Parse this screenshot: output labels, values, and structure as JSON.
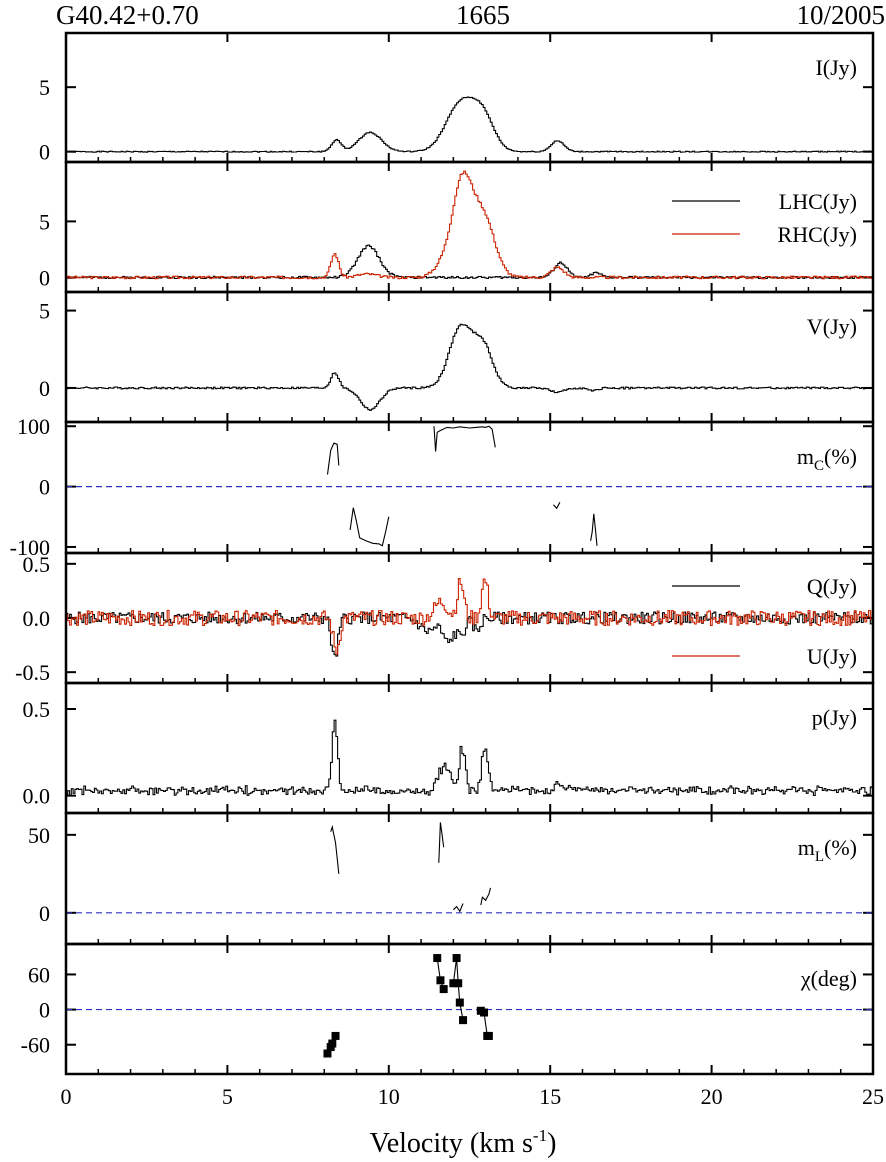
{
  "header": {
    "left": "G40.42+0.70",
    "center": "1665",
    "right": "10/2005"
  },
  "colors": {
    "black": "#000000",
    "red": "#cc2200",
    "zero_dashed": "#3030c0"
  },
  "chart_data": {
    "type": "line",
    "title": "",
    "xlabel": "Velocity (km s",
    "xlabel_exp": "-1",
    "xlabel_close": ")",
    "xlim": [
      0,
      25
    ],
    "xticks": [
      0,
      5,
      10,
      15,
      20,
      25
    ],
    "xtick_labels": [
      "0",
      "5",
      "10",
      "15",
      "20",
      "25"
    ],
    "panels": [
      {
        "id": "I",
        "label": "I(Jy)",
        "ylim": [
          -0.8,
          9.2
        ],
        "yticks": [
          0,
          5
        ],
        "ytick_labels": [
          "0",
          "5"
        ],
        "step": true,
        "series": [
          {
            "color": "black",
            "noise": 0.04,
            "seed": 1,
            "comps": [
              [
                8.35,
                0.9,
                0.15
              ],
              [
                9.4,
                1.5,
                0.35
              ],
              [
                12.2,
                3.7,
                0.45
              ],
              [
                12.9,
                2.4,
                0.35
              ],
              [
                15.2,
                0.85,
                0.2
              ]
            ]
          }
        ]
      },
      {
        "id": "LR",
        "label": "",
        "ylim": [
          -1.3,
          10.3
        ],
        "yticks": [
          0,
          5
        ],
        "ytick_labels": [
          "0",
          "5"
        ],
        "step": true,
        "legend": [
          {
            "name": "LHC(Jy)",
            "color": "black"
          },
          {
            "name": "RHC(Jy)",
            "color": "red"
          }
        ],
        "series": [
          {
            "name": "LHC(Jy)",
            "color": "black",
            "noise": 0.1,
            "seed": 2,
            "comps": [
              [
                9.35,
                2.8,
                0.33
              ],
              [
                15.3,
                1.3,
                0.2
              ],
              [
                16.4,
                0.4,
                0.15
              ]
            ]
          },
          {
            "name": "RHC(Jy)",
            "color": "red",
            "noise": 0.12,
            "seed": 3,
            "comps": [
              [
                8.3,
                2.1,
                0.12
              ],
              [
                9.3,
                0.3,
                0.3
              ],
              [
                12.25,
                8.1,
                0.3
              ],
              [
                12.9,
                5.4,
                0.35
              ],
              [
                11.7,
                1.2,
                0.3
              ],
              [
                15.2,
                0.9,
                0.2
              ]
            ]
          }
        ]
      },
      {
        "id": "V",
        "label": "V(Jy)",
        "ylim": [
          -2.2,
          6.2
        ],
        "yticks": [
          0,
          5
        ],
        "ytick_labels": [
          "0",
          "5"
        ],
        "step": true,
        "series": [
          {
            "color": "black",
            "noise": 0.06,
            "seed": 4,
            "comps": [
              [
                8.3,
                1.0,
                0.12
              ],
              [
                9.4,
                -1.4,
                0.3
              ],
              [
                12.2,
                3.9,
                0.35
              ],
              [
                12.9,
                2.6,
                0.3
              ],
              [
                15.2,
                -0.3,
                0.2
              ],
              [
                16.3,
                -0.2,
                0.15
              ]
            ]
          }
        ]
      },
      {
        "id": "mC",
        "label": "m",
        "label_sub": "C",
        "label_tail": "(%)",
        "ylim": [
          -110,
          107
        ],
        "yticks": [
          100,
          0,
          -100
        ],
        "ytick_labels": [
          "100",
          "0",
          "-100"
        ],
        "zero_line": true,
        "segments": [
          {
            "x": [
              8.1,
              8.2,
              8.3,
              8.4,
              8.45
            ],
            "y": [
              20,
              60,
              72,
              70,
              35
            ]
          },
          {
            "x": [
              8.8,
              8.9,
              9.0,
              9.1,
              9.3,
              9.5,
              9.7,
              9.8,
              9.9,
              10.0
            ],
            "y": [
              -72,
              -35,
              -58,
              -85,
              -90,
              -94,
              -95,
              -98,
              -75,
              -50
            ]
          },
          {
            "x": [
              11.4,
              11.45,
              11.5,
              11.6,
              11.8,
              12.0,
              12.2,
              12.5,
              12.7,
              12.9,
              13.0,
              13.1,
              13.2,
              13.3
            ],
            "y": [
              100,
              58,
              90,
              93,
              98,
              97,
              99,
              97,
              98,
              99,
              98,
              100,
              95,
              65
            ]
          },
          {
            "x": [
              15.1,
              15.2,
              15.3
            ],
            "y": [
              -30,
              -36,
              -26
            ]
          },
          {
            "x": [
              16.25,
              16.3,
              16.35,
              16.4,
              16.45
            ],
            "y": [
              -90,
              -75,
              -45,
              -70,
              -98
            ]
          }
        ]
      },
      {
        "id": "QU",
        "label": "",
        "ylim": [
          -0.6,
          0.6
        ],
        "yticks": [
          0.5,
          0.0,
          -0.5
        ],
        "ytick_labels": [
          "0.5",
          "0.0",
          "-0.5"
        ],
        "step": true,
        "legend": [
          {
            "name": "Q(Jy)",
            "color": "black"
          },
          {
            "name": "U(Jy)",
            "color": "red"
          }
        ],
        "series": [
          {
            "name": "Q(Jy)",
            "color": "black",
            "noise": 0.055,
            "seed": 5,
            "comps": [
              [
                8.3,
                -0.38,
                0.1
              ],
              [
                11.2,
                -0.12,
                0.25
              ],
              [
                11.8,
                -0.22,
                0.15
              ],
              [
                12.2,
                -0.15,
                0.15
              ],
              [
                12.7,
                -0.12,
                0.1
              ]
            ]
          },
          {
            "name": "U(Jy)",
            "color": "red",
            "noise": 0.07,
            "seed": 6,
            "comps": [
              [
                8.35,
                -0.3,
                0.1
              ],
              [
                11.6,
                0.15,
                0.2
              ],
              [
                12.2,
                0.33,
                0.1
              ],
              [
                12.95,
                0.35,
                0.1
              ]
            ]
          }
        ]
      },
      {
        "id": "p",
        "label": "p(Jy)",
        "ylim": [
          -0.1,
          0.65
        ],
        "yticks": [
          0.5,
          0.0
        ],
        "ytick_labels": [
          "0.5",
          "0.0"
        ],
        "step": true,
        "series": [
          {
            "color": "black",
            "noise": 0.03,
            "seed": 7,
            "positive": true,
            "base": 0.03,
            "comps": [
              [
                8.3,
                0.45,
                0.08
              ],
              [
                11.7,
                0.15,
                0.2
              ],
              [
                12.25,
                0.25,
                0.1
              ],
              [
                12.95,
                0.28,
                0.1
              ],
              [
                15.3,
                0.05,
                0.2
              ]
            ]
          }
        ]
      },
      {
        "id": "mL",
        "label": "m",
        "label_sub": "L",
        "label_tail": "(%)",
        "ylim": [
          -20,
          64
        ],
        "yticks": [
          50,
          0
        ],
        "ytick_labels": [
          "50",
          "0"
        ],
        "zero_line": true,
        "segments": [
          {
            "x": [
              8.2,
              8.25,
              8.3,
              8.35,
              8.4,
              8.45
            ],
            "y": [
              52,
              55,
              50,
              45,
              35,
              25
            ]
          },
          {
            "x": [
              11.55,
              11.6,
              11.65,
              11.7
            ],
            "y": [
              32,
              58,
              50,
              42
            ]
          },
          {
            "x": [
              12.0,
              12.1,
              12.2,
              12.3
            ],
            "y": [
              2,
              4,
              1,
              6
            ]
          },
          {
            "x": [
              12.85,
              12.9,
              13.0,
              13.1,
              13.15
            ],
            "y": [
              5,
              10,
              8,
              12,
              16
            ]
          }
        ]
      },
      {
        "id": "chi",
        "label": "χ(deg)",
        "ylim": [
          -110,
          112
        ],
        "yticks": [
          60,
          0,
          -60
        ],
        "ytick_labels": [
          "60",
          "0",
          "-60"
        ],
        "zero_line": true,
        "markers": true,
        "segments": [
          {
            "x": [
              8.1,
              8.2,
              8.25,
              8.35
            ],
            "y": [
              -75,
              -64,
              -58,
              -45
            ]
          },
          {
            "x": [
              11.5,
              11.6,
              11.7
            ],
            "y": [
              88,
              50,
              35
            ]
          },
          {
            "x": [
              12.0,
              12.1,
              12.15,
              12.2,
              12.3
            ],
            "y": [
              45,
              88,
              45,
              12,
              -18
            ]
          },
          {
            "x": [
              12.85,
              12.95,
              13.05,
              13.1
            ],
            "y": [
              -2,
              -5,
              -45,
              -45
            ]
          }
        ]
      }
    ]
  }
}
